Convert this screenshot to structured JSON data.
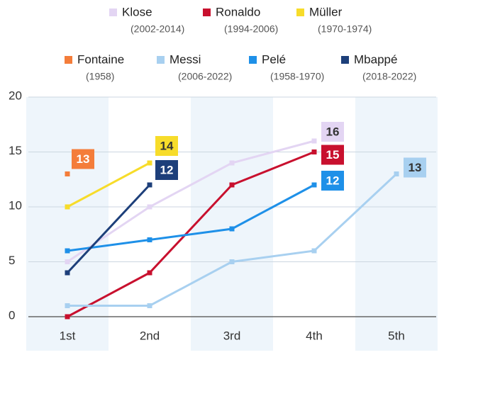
{
  "chart_data": {
    "type": "line",
    "categories": [
      "1st",
      "2nd",
      "3rd",
      "4th",
      "5th"
    ],
    "ylim": [
      0,
      20
    ],
    "yticks": [
      0,
      5,
      10,
      15,
      20
    ],
    "grid": true,
    "series": [
      {
        "name": "Klose",
        "years": "(2002-2014)",
        "color": "#e3d5f3",
        "values": [
          5,
          10,
          14,
          16,
          null
        ]
      },
      {
        "name": "Ronaldo",
        "years": "(1994-2006)",
        "color": "#c8102e",
        "values": [
          0,
          4,
          12,
          15,
          null
        ]
      },
      {
        "name": "Müller",
        "years": "(1970-1974)",
        "color": "#f7dc2a",
        "values": [
          10,
          14,
          null,
          null,
          null
        ]
      },
      {
        "name": "Fontaine",
        "years": "(1958)",
        "color": "#f47d3a",
        "values": [
          13,
          null,
          null,
          null,
          null
        ]
      },
      {
        "name": "Messi",
        "years": "(2006-2022)",
        "color": "#a8d0f0",
        "values": [
          1,
          1,
          5,
          6,
          13
        ]
      },
      {
        "name": "Pelé",
        "years": "(1958-1970)",
        "color": "#1e90e8",
        "values": [
          6,
          7,
          8,
          12,
          null
        ]
      },
      {
        "name": "Mbappé",
        "years": "(2018-2022)",
        "color": "#1d3f7a",
        "values": [
          4,
          12,
          null,
          null,
          null
        ]
      }
    ]
  }
}
